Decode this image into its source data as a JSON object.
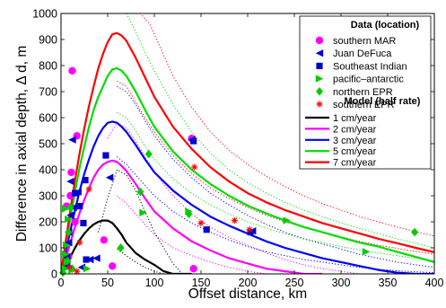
{
  "chart_data": {
    "type": "scatter",
    "xlabel": "Offset distance, km",
    "ylabel": "Difference in axial depth, Δ d, m",
    "xlim": [
      0,
      400
    ],
    "ylim": [
      0,
      1000
    ],
    "xticks": [
      0,
      50,
      100,
      150,
      200,
      250,
      300,
      350,
      400
    ],
    "yticks": [
      0,
      100,
      200,
      300,
      400,
      500,
      600,
      700,
      800,
      900,
      1000
    ],
    "grid": false,
    "legend_placement": "top-right",
    "legend": {
      "data_heading": "Data (location)",
      "model_heading": "Model (half rate)"
    },
    "data_series": [
      {
        "name": "southern MAR",
        "marker": "circle",
        "color": "#ff00ff",
        "points": [
          [
            12,
            780
          ],
          [
            17,
            530
          ],
          [
            11,
            390
          ],
          [
            10,
            300
          ],
          [
            46,
            130
          ],
          [
            55,
            30
          ],
          [
            140,
            520
          ],
          [
            142,
            20
          ],
          [
            6,
            260
          ],
          [
            15,
            200
          ],
          [
            8,
            65
          ]
        ]
      },
      {
        "name": "Juan DeFuca",
        "marker": "triangle-left",
        "color": "#0000cc",
        "points": [
          [
            12,
            515
          ],
          [
            10,
            355
          ],
          [
            18,
            315
          ],
          [
            13,
            255
          ],
          [
            10,
            225
          ],
          [
            8,
            160
          ],
          [
            8,
            120
          ],
          [
            6,
            65
          ],
          [
            6,
            30
          ],
          [
            22,
            25
          ],
          [
            31,
            55
          ],
          [
            38,
            60
          ],
          [
            52,
            370
          ],
          [
            140,
            515
          ],
          [
            205,
            165
          ]
        ]
      },
      {
        "name": "Southeast Indian",
        "marker": "square",
        "color": "#0000cc",
        "points": [
          [
            15,
            310
          ],
          [
            26,
            360
          ],
          [
            20,
            260
          ],
          [
            24,
            195
          ],
          [
            27,
            55
          ],
          [
            48,
            455
          ],
          [
            142,
            510
          ],
          [
            156,
            170
          ],
          [
            203,
            160
          ]
        ]
      },
      {
        "name": "pacific–antarctic",
        "marker": "triangle-right",
        "color": "#00cc00",
        "points": [
          [
            5,
            250
          ],
          [
            8,
            210
          ],
          [
            6,
            110
          ],
          [
            5,
            75
          ],
          [
            7,
            45
          ],
          [
            5,
            20
          ],
          [
            12,
            15
          ],
          [
            28,
            20
          ],
          [
            88,
            235
          ],
          [
            137,
            240
          ],
          [
            242,
            205
          ],
          [
            327,
            85
          ]
        ]
      },
      {
        "name": "northern EPR",
        "marker": "diamond",
        "color": "#00cc00",
        "points": [
          [
            10,
            255
          ],
          [
            8,
            160
          ],
          [
            7,
            50
          ],
          [
            64,
            100
          ],
          [
            85,
            315
          ],
          [
            94,
            460
          ],
          [
            137,
            230
          ],
          [
            379,
            160
          ],
          [
            2,
            5
          ],
          [
            12,
            20
          ]
        ]
      },
      {
        "name": "southern EPR",
        "marker": "asterisk",
        "color": "#ff0000",
        "points": [
          [
            143,
            410
          ],
          [
            150,
            195
          ],
          [
            186,
            205
          ],
          [
            202,
            170
          ],
          [
            20,
            120
          ],
          [
            17,
            10
          ],
          [
            30,
            325
          ],
          [
            9,
            25
          ]
        ]
      }
    ],
    "model_series": [
      {
        "name": "1 cm/year",
        "color": "#000000",
        "x": [
          0,
          5,
          10,
          15,
          20,
          25,
          30,
          35,
          40,
          45,
          50,
          55,
          60,
          65,
          70,
          80,
          90,
          100,
          110,
          120,
          130,
          140
        ],
        "y": [
          0,
          30,
          65,
          100,
          130,
          155,
          175,
          190,
          200,
          205,
          205,
          195,
          175,
          150,
          120,
          80,
          55,
          35,
          10,
          0,
          0,
          0
        ],
        "upper": {
          "x": [
            40,
            50,
            60,
            70,
            80,
            90,
            100,
            110,
            120,
            130
          ],
          "y": [
            160,
            290,
            400,
            380,
            320,
            240,
            160,
            100,
            40,
            0
          ]
        },
        "lower": {
          "x": [
            60,
            70,
            80,
            90,
            100,
            110,
            120,
            130,
            140
          ],
          "y": [
            95,
            70,
            45,
            25,
            10,
            0,
            0,
            0,
            0
          ]
        }
      },
      {
        "name": "2 cm/year",
        "color": "#ff00ff",
        "x": [
          0,
          5,
          10,
          15,
          20,
          25,
          30,
          35,
          40,
          45,
          50,
          55,
          60,
          65,
          70,
          80,
          90,
          100,
          120,
          140,
          160,
          180,
          200,
          220,
          240,
          260,
          280
        ],
        "y": [
          0,
          60,
          120,
          180,
          235,
          285,
          330,
          370,
          400,
          420,
          430,
          435,
          430,
          415,
          395,
          345,
          290,
          240,
          175,
          125,
          90,
          60,
          40,
          20,
          10,
          0,
          0
        ],
        "upper": {
          "x": [
            50,
            60,
            70,
            80,
            90,
            100,
            120,
            140,
            160,
            180,
            200,
            220,
            240,
            260,
            280,
            300,
            320
          ],
          "y": [
            520,
            580,
            560,
            510,
            450,
            390,
            300,
            230,
            180,
            140,
            110,
            80,
            55,
            35,
            20,
            10,
            0
          ]
        },
        "lower": {
          "x": [
            60,
            70,
            80,
            90,
            100,
            120,
            140,
            160,
            180,
            200,
            220,
            240,
            260
          ],
          "y": [
            300,
            270,
            230,
            190,
            150,
            100,
            70,
            45,
            25,
            10,
            0,
            0,
            0
          ]
        }
      },
      {
        "name": "3 cm/year",
        "color": "#0000ff",
        "x": [
          0,
          5,
          10,
          15,
          20,
          25,
          30,
          35,
          40,
          45,
          50,
          55,
          60,
          65,
          70,
          80,
          90,
          100,
          120,
          140,
          160,
          180,
          200,
          220,
          240,
          260,
          280,
          300,
          320,
          340,
          360,
          380,
          400
        ],
        "y": [
          0,
          85,
          165,
          245,
          320,
          385,
          440,
          490,
          530,
          560,
          580,
          585,
          580,
          565,
          545,
          495,
          440,
          390,
          320,
          265,
          220,
          185,
          155,
          125,
          100,
          80,
          60,
          45,
          30,
          15,
          5,
          0,
          0
        ],
        "upper": {
          "x": [
            60,
            70,
            80,
            90,
            100,
            120,
            140,
            160,
            180,
            200,
            220,
            240,
            260,
            280,
            300,
            320,
            340,
            360,
            380,
            400
          ],
          "y": [
            720,
            700,
            650,
            590,
            530,
            440,
            370,
            310,
            265,
            225,
            190,
            160,
            135,
            115,
            95,
            75,
            60,
            45,
            35,
            25
          ]
        },
        "lower": {
          "x": [
            60,
            70,
            80,
            90,
            100,
            120,
            140,
            160,
            180,
            200,
            220,
            240,
            260,
            280,
            300,
            320,
            340,
            360,
            380,
            400
          ],
          "y": [
            450,
            420,
            380,
            340,
            300,
            240,
            195,
            160,
            130,
            105,
            85,
            70,
            55,
            45,
            35,
            25,
            18,
            12,
            8,
            5
          ]
        }
      },
      {
        "name": "5 cm/year",
        "color": "#00dd00",
        "x": [
          0,
          5,
          10,
          15,
          20,
          25,
          30,
          35,
          40,
          45,
          50,
          55,
          60,
          65,
          70,
          80,
          90,
          100,
          120,
          140,
          160,
          180,
          200,
          220,
          240,
          260,
          280,
          300,
          320,
          340,
          360,
          380,
          400
        ],
        "y": [
          0,
          110,
          215,
          315,
          410,
          490,
          565,
          630,
          680,
          720,
          760,
          785,
          790,
          780,
          760,
          700,
          630,
          565,
          470,
          400,
          345,
          300,
          262,
          232,
          205,
          180,
          160,
          140,
          120,
          105,
          85,
          65,
          45
        ],
        "upper": {
          "x": [
            60,
            70,
            80,
            90,
            100,
            120,
            140,
            160,
            180,
            200,
            220,
            240,
            260,
            280,
            300,
            320,
            340,
            360,
            380,
            400
          ],
          "y": [
            1000,
            1000,
            930,
            850,
            780,
            650,
            545,
            465,
            400,
            350,
            310,
            275,
            245,
            220,
            195,
            175,
            155,
            135,
            118,
            100
          ]
        },
        "lower": {
          "x": [
            60,
            70,
            80,
            90,
            100,
            120,
            140,
            160,
            180,
            200,
            220,
            240,
            260,
            280,
            300,
            320,
            340,
            360,
            380,
            400
          ],
          "y": [
            620,
            600,
            550,
            490,
            440,
            365,
            310,
            265,
            230,
            200,
            175,
            155,
            135,
            120,
            105,
            92,
            80,
            70,
            60,
            50
          ]
        }
      },
      {
        "name": "7 cm/year",
        "color": "#ff0000",
        "x": [
          0,
          5,
          10,
          15,
          20,
          25,
          30,
          35,
          40,
          45,
          50,
          55,
          60,
          65,
          70,
          80,
          90,
          100,
          120,
          140,
          160,
          180,
          200,
          220,
          240,
          260,
          280,
          300,
          320,
          340,
          360,
          380,
          400
        ],
        "y": [
          0,
          125,
          245,
          360,
          465,
          560,
          645,
          720,
          790,
          845,
          890,
          920,
          925,
          915,
          895,
          830,
          755,
          680,
          565,
          480,
          410,
          355,
          310,
          275,
          245,
          220,
          195,
          175,
          155,
          135,
          118,
          100,
          83
        ],
        "upper": {
          "x": [
            65,
            75,
            85,
            95,
            105,
            120,
            140,
            160,
            180,
            200,
            220,
            240,
            260,
            280,
            300,
            320,
            340,
            360,
            380,
            400
          ],
          "y": [
            1000,
            1000,
            1000,
            960,
            880,
            760,
            640,
            545,
            475,
            420,
            375,
            335,
            300,
            270,
            245,
            220,
            200,
            180,
            162,
            145
          ]
        },
        "lower": {
          "x": [
            60,
            70,
            80,
            90,
            100,
            120,
            140,
            160,
            180,
            200,
            220,
            240,
            260,
            280,
            300,
            320,
            340,
            360,
            380,
            400
          ],
          "y": [
            740,
            720,
            660,
            600,
            545,
            455,
            385,
            330,
            290,
            255,
            225,
            200,
            180,
            160,
            142,
            125,
            110,
            98,
            86,
            75
          ]
        }
      }
    ]
  }
}
